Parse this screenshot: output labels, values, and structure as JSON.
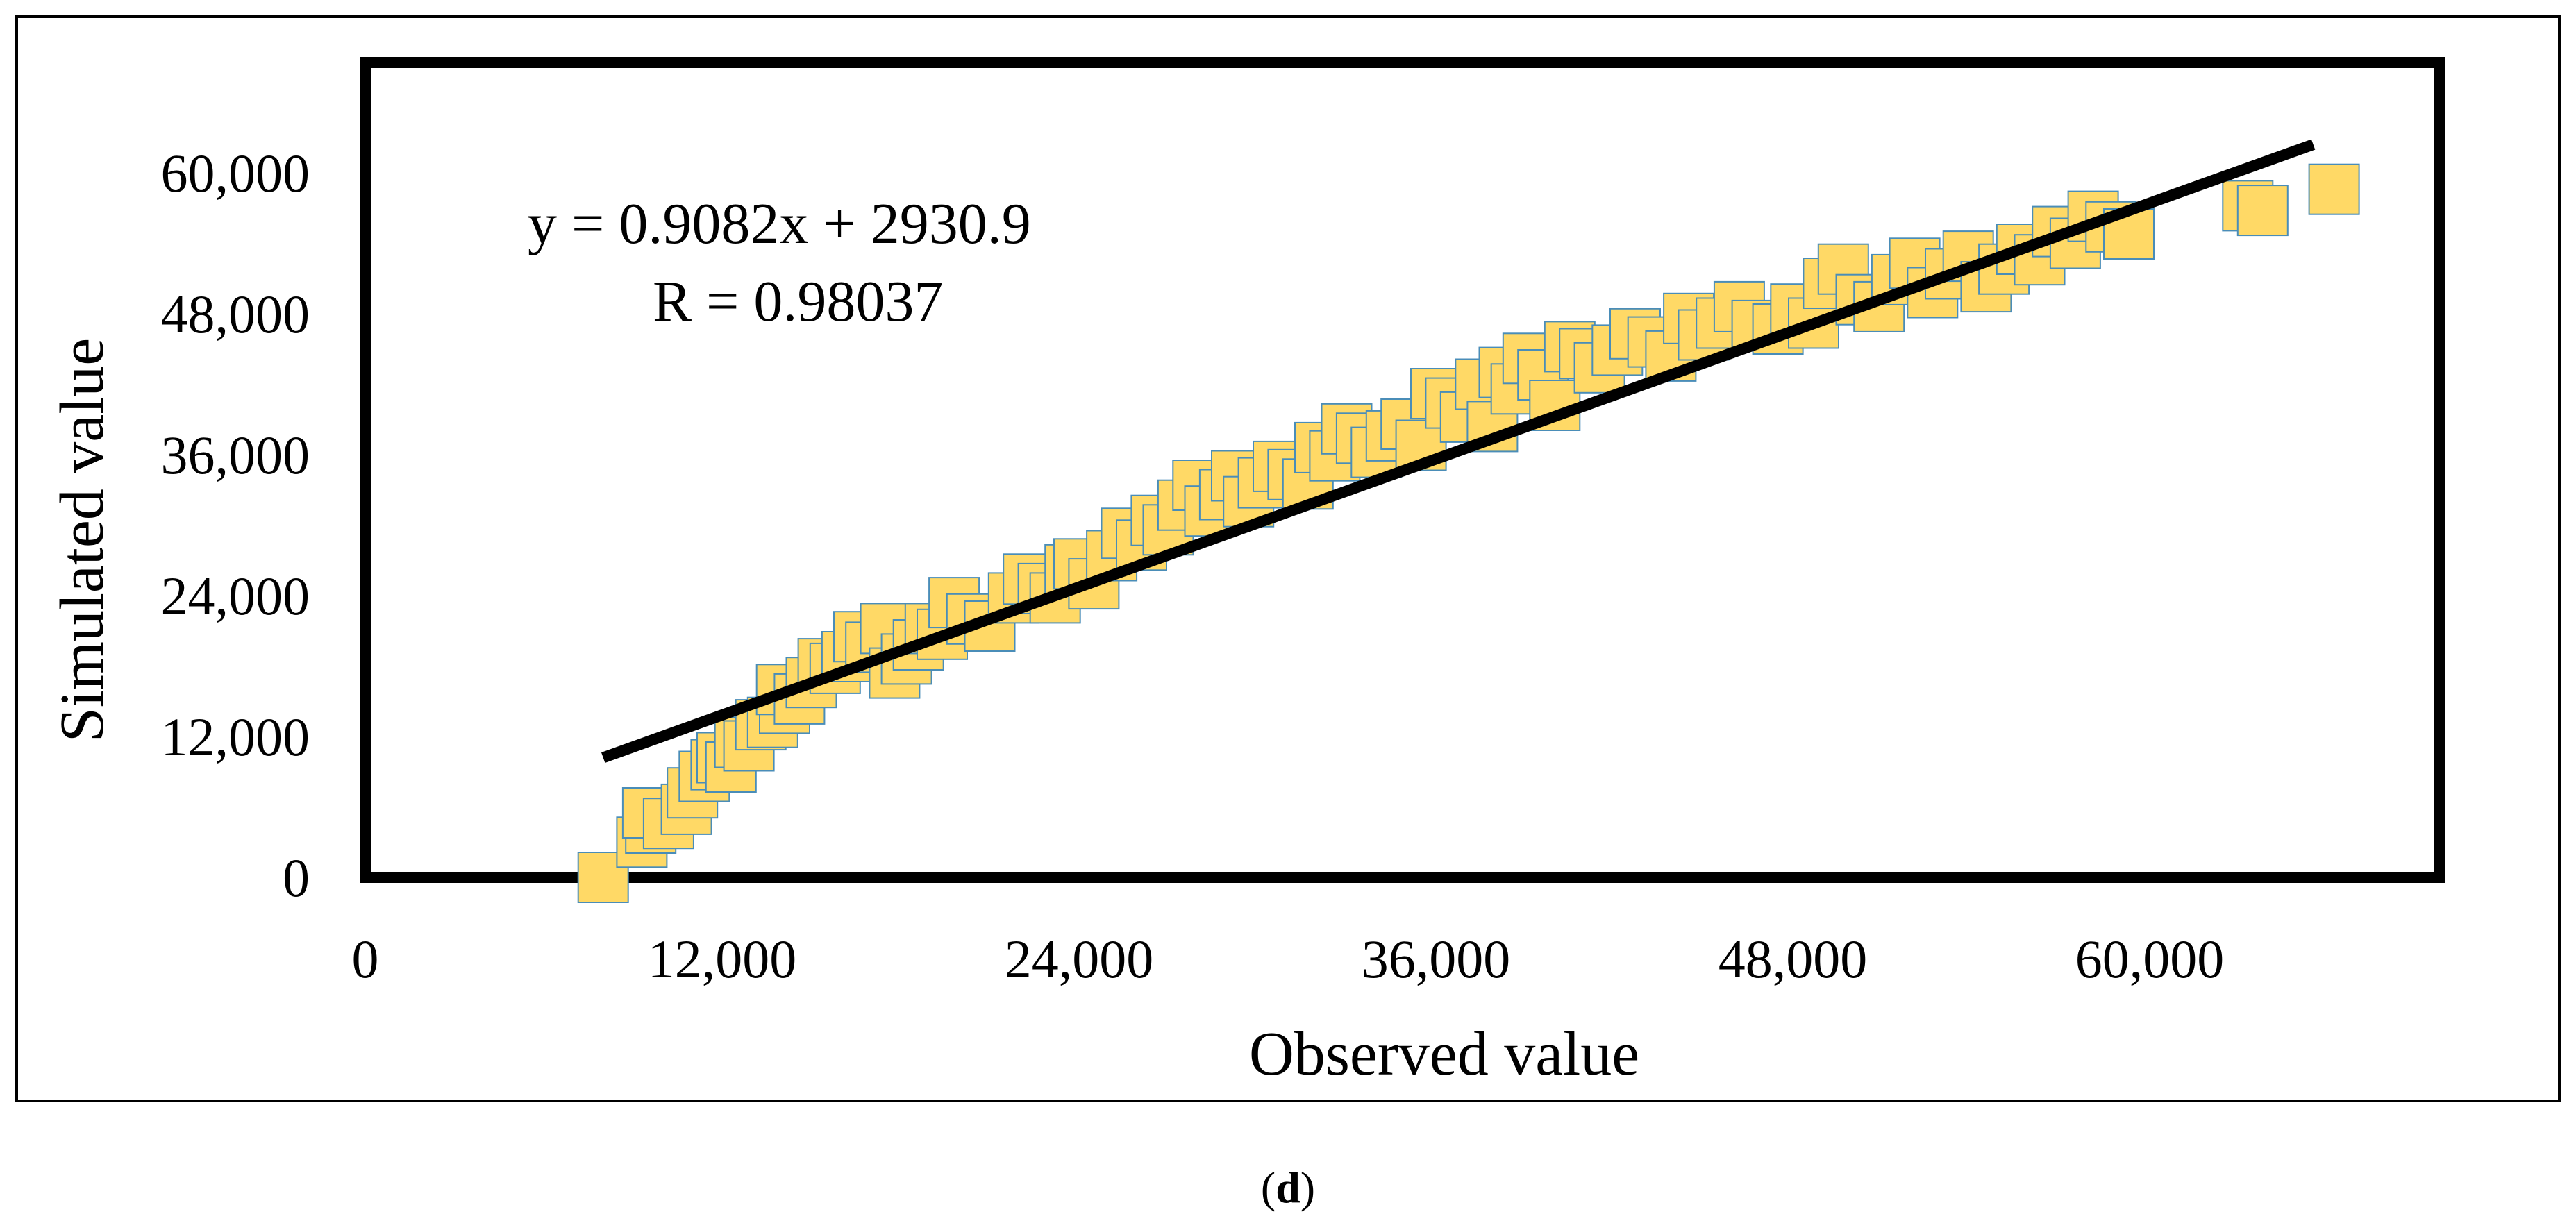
{
  "chart_data": {
    "type": "scatter",
    "xlabel": "Observed value",
    "ylabel": "Simulated value",
    "xlim": [
      0,
      68000
    ],
    "ylim": [
      0,
      68000
    ],
    "x_ticks": [
      0,
      12000,
      24000,
      36000,
      48000,
      60000
    ],
    "y_ticks": [
      0,
      12000,
      24000,
      36000,
      48000,
      60000
    ],
    "x_tick_labels": [
      "0",
      "12,000",
      "24,000",
      "36,000",
      "48,000",
      "60,000"
    ],
    "y_tick_labels": [
      "0",
      "12,000",
      "24,000",
      "36,000",
      "48,000",
      "60,000"
    ],
    "equation": "y = 0.9082x + 2930.9",
    "r_label": "R = 0.98037",
    "trendline": {
      "slope": 0.9082,
      "intercept": 2930.9,
      "x_start": 8000,
      "x_end": 65500
    },
    "marker_fill": "#FFD966",
    "marker_stroke": "#4A8DB8",
    "line_color": "#000000",
    "points": [
      [
        8000,
        0
      ],
      [
        9300,
        3000
      ],
      [
        9600,
        4200
      ],
      [
        9500,
        5500
      ],
      [
        10200,
        4600
      ],
      [
        10800,
        5800
      ],
      [
        11000,
        7200
      ],
      [
        11400,
        8600
      ],
      [
        11800,
        9600
      ],
      [
        12000,
        10200
      ],
      [
        12300,
        9400
      ],
      [
        12600,
        11500
      ],
      [
        12900,
        11200
      ],
      [
        13300,
        13000
      ],
      [
        13700,
        13200
      ],
      [
        14100,
        14400
      ],
      [
        14000,
        16000
      ],
      [
        14600,
        15200
      ],
      [
        15000,
        16600
      ],
      [
        15400,
        18200
      ],
      [
        15800,
        17800
      ],
      [
        16200,
        18800
      ],
      [
        16600,
        20500
      ],
      [
        17000,
        19600
      ],
      [
        17500,
        21200
      ],
      [
        17800,
        17400
      ],
      [
        18200,
        18600
      ],
      [
        18600,
        19800
      ],
      [
        19000,
        21200
      ],
      [
        19400,
        20700
      ],
      [
        19800,
        23400
      ],
      [
        20400,
        22000
      ],
      [
        21000,
        21400
      ],
      [
        21800,
        23800
      ],
      [
        22300,
        25400
      ],
      [
        22800,
        24600
      ],
      [
        23200,
        23800
      ],
      [
        23700,
        26200
      ],
      [
        24000,
        26700
      ],
      [
        24500,
        25000
      ],
      [
        25100,
        27400
      ],
      [
        25600,
        29300
      ],
      [
        26100,
        28300
      ],
      [
        26600,
        30400
      ],
      [
        27000,
        29600
      ],
      [
        27500,
        31700
      ],
      [
        28000,
        33400
      ],
      [
        28400,
        31200
      ],
      [
        28900,
        32600
      ],
      [
        29300,
        34200
      ],
      [
        29700,
        32000
      ],
      [
        30200,
        33600
      ],
      [
        30700,
        35000
      ],
      [
        31200,
        34300
      ],
      [
        31700,
        33500
      ],
      [
        32100,
        36600
      ],
      [
        32600,
        35900
      ],
      [
        33000,
        38200
      ],
      [
        33500,
        37400
      ],
      [
        34000,
        36200
      ],
      [
        34500,
        37600
      ],
      [
        35000,
        38600
      ],
      [
        35500,
        36800
      ],
      [
        36000,
        41200
      ],
      [
        36500,
        40400
      ],
      [
        37000,
        39200
      ],
      [
        37500,
        42000
      ],
      [
        37900,
        38400
      ],
      [
        38300,
        43000
      ],
      [
        38700,
        41600
      ],
      [
        39100,
        44200
      ],
      [
        39600,
        42800
      ],
      [
        40000,
        40200
      ],
      [
        40500,
        45200
      ],
      [
        41000,
        44600
      ],
      [
        41500,
        43400
      ],
      [
        42100,
        44900
      ],
      [
        42700,
        46300
      ],
      [
        43300,
        45600
      ],
      [
        43900,
        44400
      ],
      [
        44500,
        47600
      ],
      [
        45000,
        46200
      ],
      [
        45600,
        47200
      ],
      [
        46200,
        48600
      ],
      [
        46800,
        47000
      ],
      [
        47500,
        46700
      ],
      [
        48100,
        48400
      ],
      [
        48700,
        47200
      ],
      [
        49200,
        50600
      ],
      [
        49700,
        51800
      ],
      [
        50300,
        49200
      ],
      [
        50900,
        48600
      ],
      [
        51500,
        50900
      ],
      [
        52100,
        52300
      ],
      [
        52700,
        49800
      ],
      [
        53300,
        51400
      ],
      [
        53900,
        52900
      ],
      [
        54500,
        50300
      ],
      [
        55100,
        51800
      ],
      [
        55700,
        53500
      ],
      [
        56300,
        52600
      ],
      [
        56900,
        55000
      ],
      [
        57500,
        54000
      ],
      [
        58100,
        56300
      ],
      [
        58700,
        55400
      ],
      [
        59300,
        54800
      ],
      [
        63300,
        57200
      ],
      [
        63800,
        56800
      ],
      [
        66200,
        58600
      ]
    ]
  },
  "caption": {
    "open": "(",
    "label": "d",
    "close": ")"
  }
}
